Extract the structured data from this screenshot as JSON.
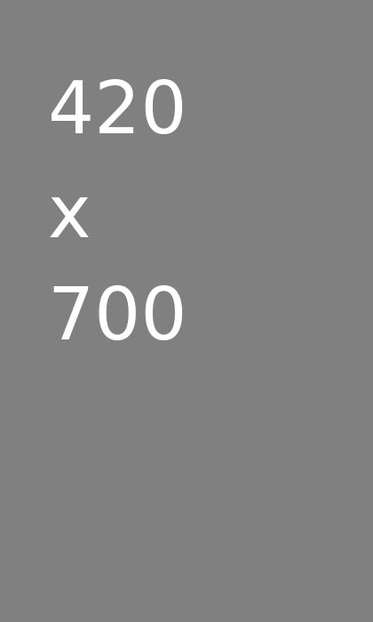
{
  "placeholder": {
    "width_text": "420",
    "separator_text": "x",
    "height_text": "700",
    "background_color": "#808080",
    "text_color": "#ffffff"
  }
}
